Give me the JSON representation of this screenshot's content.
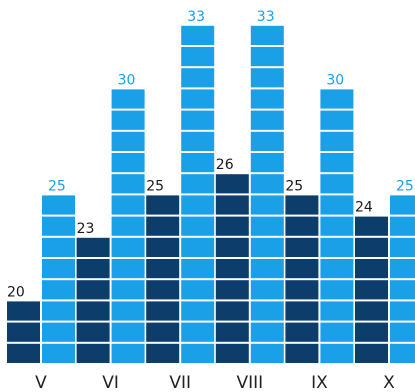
{
  "chart_data": {
    "type": "bar",
    "categories": [
      "V",
      "VI",
      "VII",
      "VIII",
      "IX",
      "X"
    ],
    "series": [
      {
        "values": [
          20,
          23,
          25,
          26,
          25,
          24
        ],
        "color": "#0c3d6b",
        "label_color": "#1a1a1a"
      },
      {
        "values": [
          25,
          30,
          33,
          33,
          30,
          25
        ],
        "color": "#1aa0e6",
        "label_color": "#1aa0e6"
      }
    ],
    "title": "",
    "xlabel": "",
    "ylabel": "",
    "grid": false,
    "legend": "none",
    "ylim": [
      17,
      33
    ],
    "bar_style": "stacked-blocks"
  }
}
